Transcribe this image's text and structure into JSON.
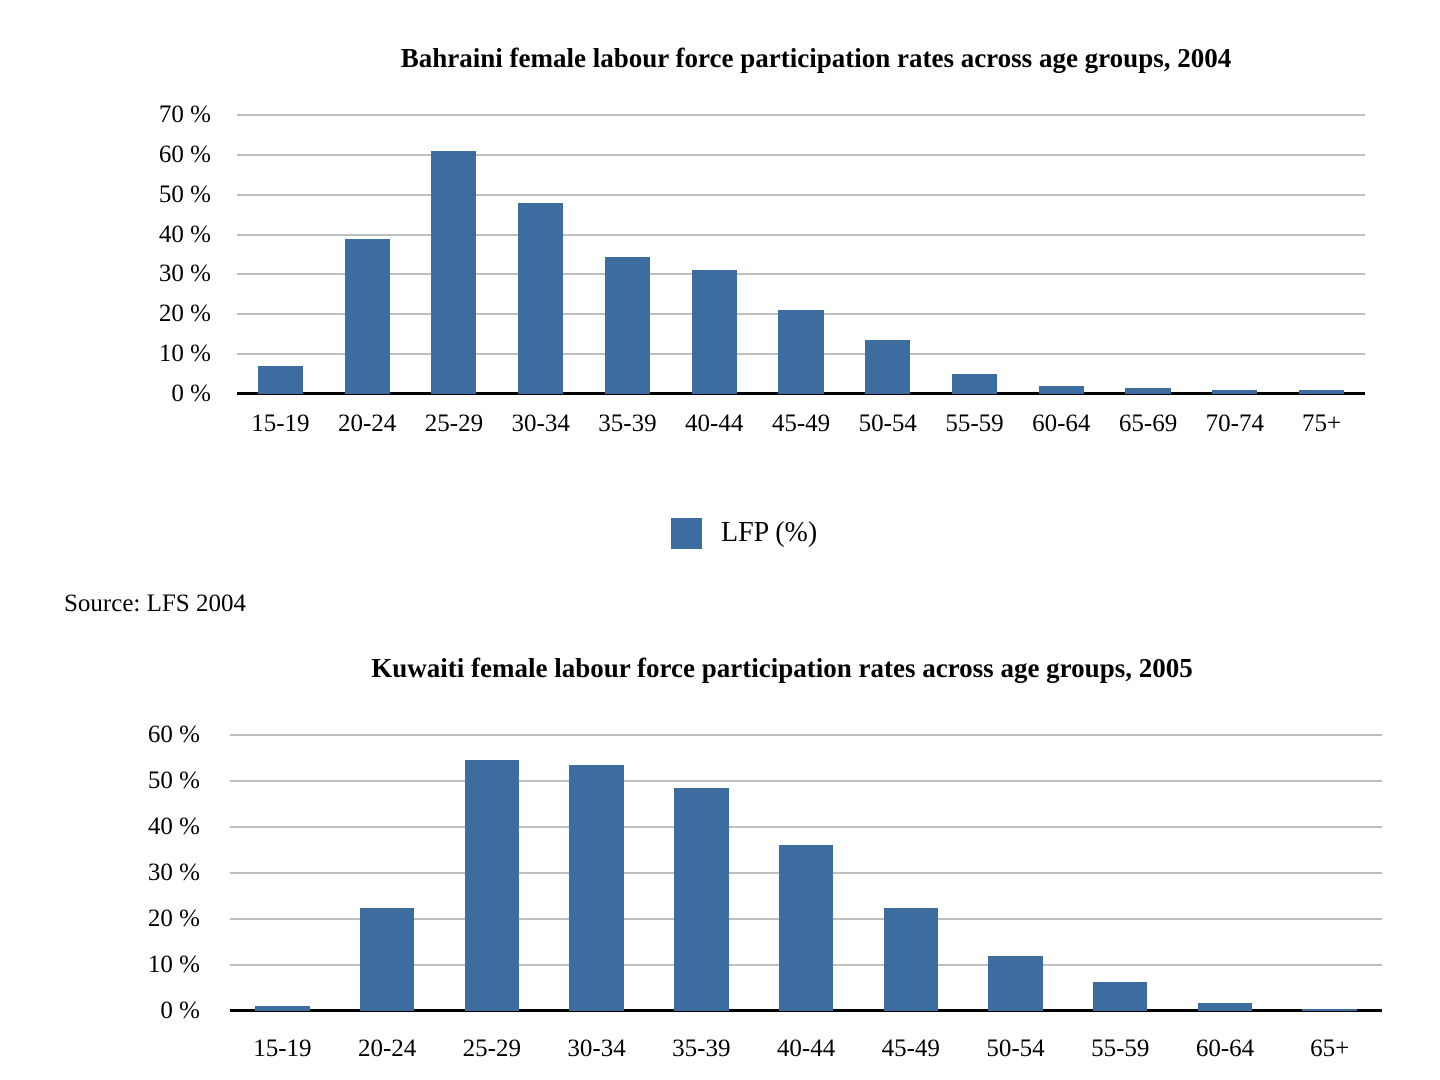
{
  "chart_data": [
    {
      "type": "bar",
      "title": "Bahraini female labour force participation rates across age groups, 2004",
      "categories": [
        "15-19",
        "20-24",
        "25-29",
        "30-34",
        "35-39",
        "40-44",
        "45-49",
        "50-54",
        "55-59",
        "60-64",
        "65-69",
        "70-74",
        "75+"
      ],
      "values": [
        7,
        39,
        61,
        48,
        34.5,
        31,
        21,
        13.5,
        5,
        2,
        1.5,
        1,
        1
      ],
      "series_name": "LFP (%)",
      "xlabel": "",
      "ylabel": "",
      "ylim": [
        0,
        70
      ],
      "ytick_step": 10,
      "yticks": [
        "70 %",
        "60 %",
        "50 %",
        "40 %",
        "30 %",
        "20 %",
        "10 %",
        "0 %"
      ],
      "grid": true,
      "legend_position": "bottom",
      "bar_color": "#3c6ca0"
    },
    {
      "type": "bar",
      "title": "Kuwaiti female labour force participation rates across age groups, 2005",
      "categories": [
        "15-19",
        "20-24",
        "25-29",
        "30-34",
        "35-39",
        "40-44",
        "45-49",
        "50-54",
        "55-59",
        "60-64",
        "65+"
      ],
      "values": [
        1,
        22.5,
        54.5,
        53.5,
        48.5,
        36,
        22.5,
        12,
        6.3,
        1.7,
        0.4
      ],
      "series_name": "LFP (%)",
      "xlabel": "",
      "ylabel": "",
      "ylim": [
        0,
        60
      ],
      "ytick_step": 10,
      "yticks": [
        "60 %",
        "50 %",
        "40 %",
        "30 %",
        "20 %",
        "10 %",
        "0 %"
      ],
      "grid": true,
      "legend_position": "none",
      "bar_color": "#3c6ca0"
    }
  ],
  "legend": {
    "label": "LFP (%)",
    "swatch_color": "#3c6ca0"
  },
  "source_note": "Source: LFS 2004",
  "colors": {
    "bar": "#3c6ca0",
    "gridline": "#bfbfbf",
    "axis": "#000000",
    "text": "#000000",
    "background": "#ffffff"
  }
}
